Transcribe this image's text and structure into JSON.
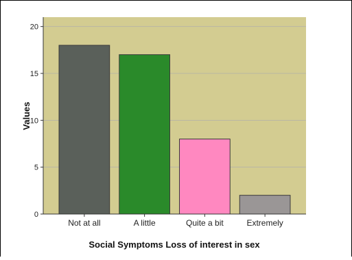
{
  "chart_data": {
    "type": "bar",
    "categories": [
      "Not at all",
      "A little",
      "Quite a bit",
      "Extremely"
    ],
    "values": [
      18,
      17,
      8,
      2
    ],
    "colors": [
      "#5a605a",
      "#2a8a2a",
      "#ff88c0",
      "#9a9696"
    ],
    "xlabel": "Social Symptoms Loss of interest in sex",
    "ylabel": "Values",
    "ylim": [
      0,
      21
    ],
    "yticks": [
      0,
      5,
      10,
      15,
      20
    ],
    "grid": true,
    "plot_background": "#d3cc91"
  }
}
